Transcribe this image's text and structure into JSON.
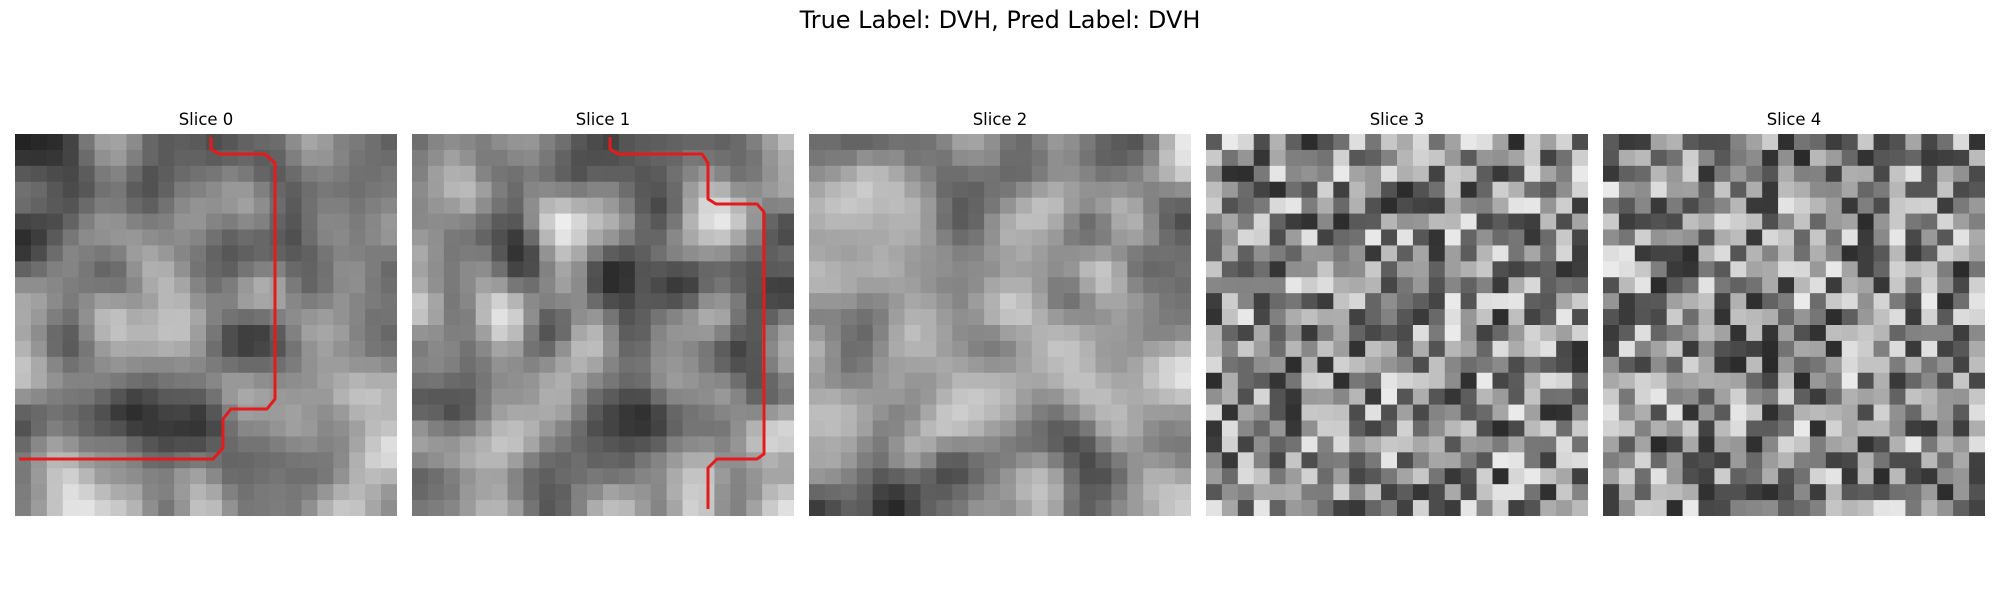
{
  "figure": {
    "title": "True Label: DVH, Pred Label: DVH"
  },
  "slices": [
    {
      "title": "Slice 0",
      "seed": 11,
      "style": "smooth",
      "mean": 0.45,
      "has_contour": true
    },
    {
      "title": "Slice 1",
      "seed": 23,
      "style": "smooth",
      "mean": 0.58,
      "has_contour": true
    },
    {
      "title": "Slice 2",
      "seed": 37,
      "style": "smooth",
      "mean": 0.52,
      "has_contour": false
    },
    {
      "title": "Slice 3",
      "seed": 41,
      "style": "noisy",
      "mean": 0.55,
      "has_contour": false
    },
    {
      "title": "Slice 4",
      "seed": 53,
      "style": "noisy",
      "mean": 0.55,
      "has_contour": false
    }
  ],
  "colors": {
    "contour": "#e41a1c"
  }
}
